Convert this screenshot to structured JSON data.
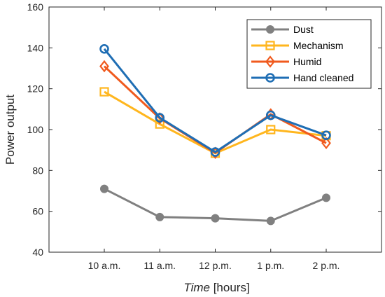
{
  "chart_data": {
    "type": "line",
    "categories": [
      "10 a.m.",
      "11 a.m.",
      "12 p.m.",
      "1 p.m.",
      "2 p.m."
    ],
    "series": [
      {
        "name": "Dust",
        "values": [
          71,
          57.2,
          56.6,
          55.3,
          66.6
        ],
        "color": "#808080",
        "marker": "circle-filled"
      },
      {
        "name": "Mechanism",
        "values": [
          118.5,
          102.7,
          88.4,
          100,
          97
        ],
        "color": "#FFB61E",
        "marker": "square"
      },
      {
        "name": "Humid",
        "values": [
          131,
          105.5,
          88.6,
          107.5,
          93.4
        ],
        "color": "#F05A1E",
        "marker": "diamond"
      },
      {
        "name": "Hand cleaned",
        "values": [
          139.5,
          105.8,
          89,
          107,
          97.2
        ],
        "color": "#1F6EB4",
        "marker": "circle-open"
      }
    ],
    "xlabel_italic": "Time",
    "xlabel_rest": " [hours]",
    "ylabel": "Power output",
    "ylim": [
      40,
      160
    ],
    "yticks": [
      "40",
      "60",
      "80",
      "100",
      "120",
      "140",
      "160"
    ],
    "grid": false,
    "legend_position": "top-right"
  }
}
